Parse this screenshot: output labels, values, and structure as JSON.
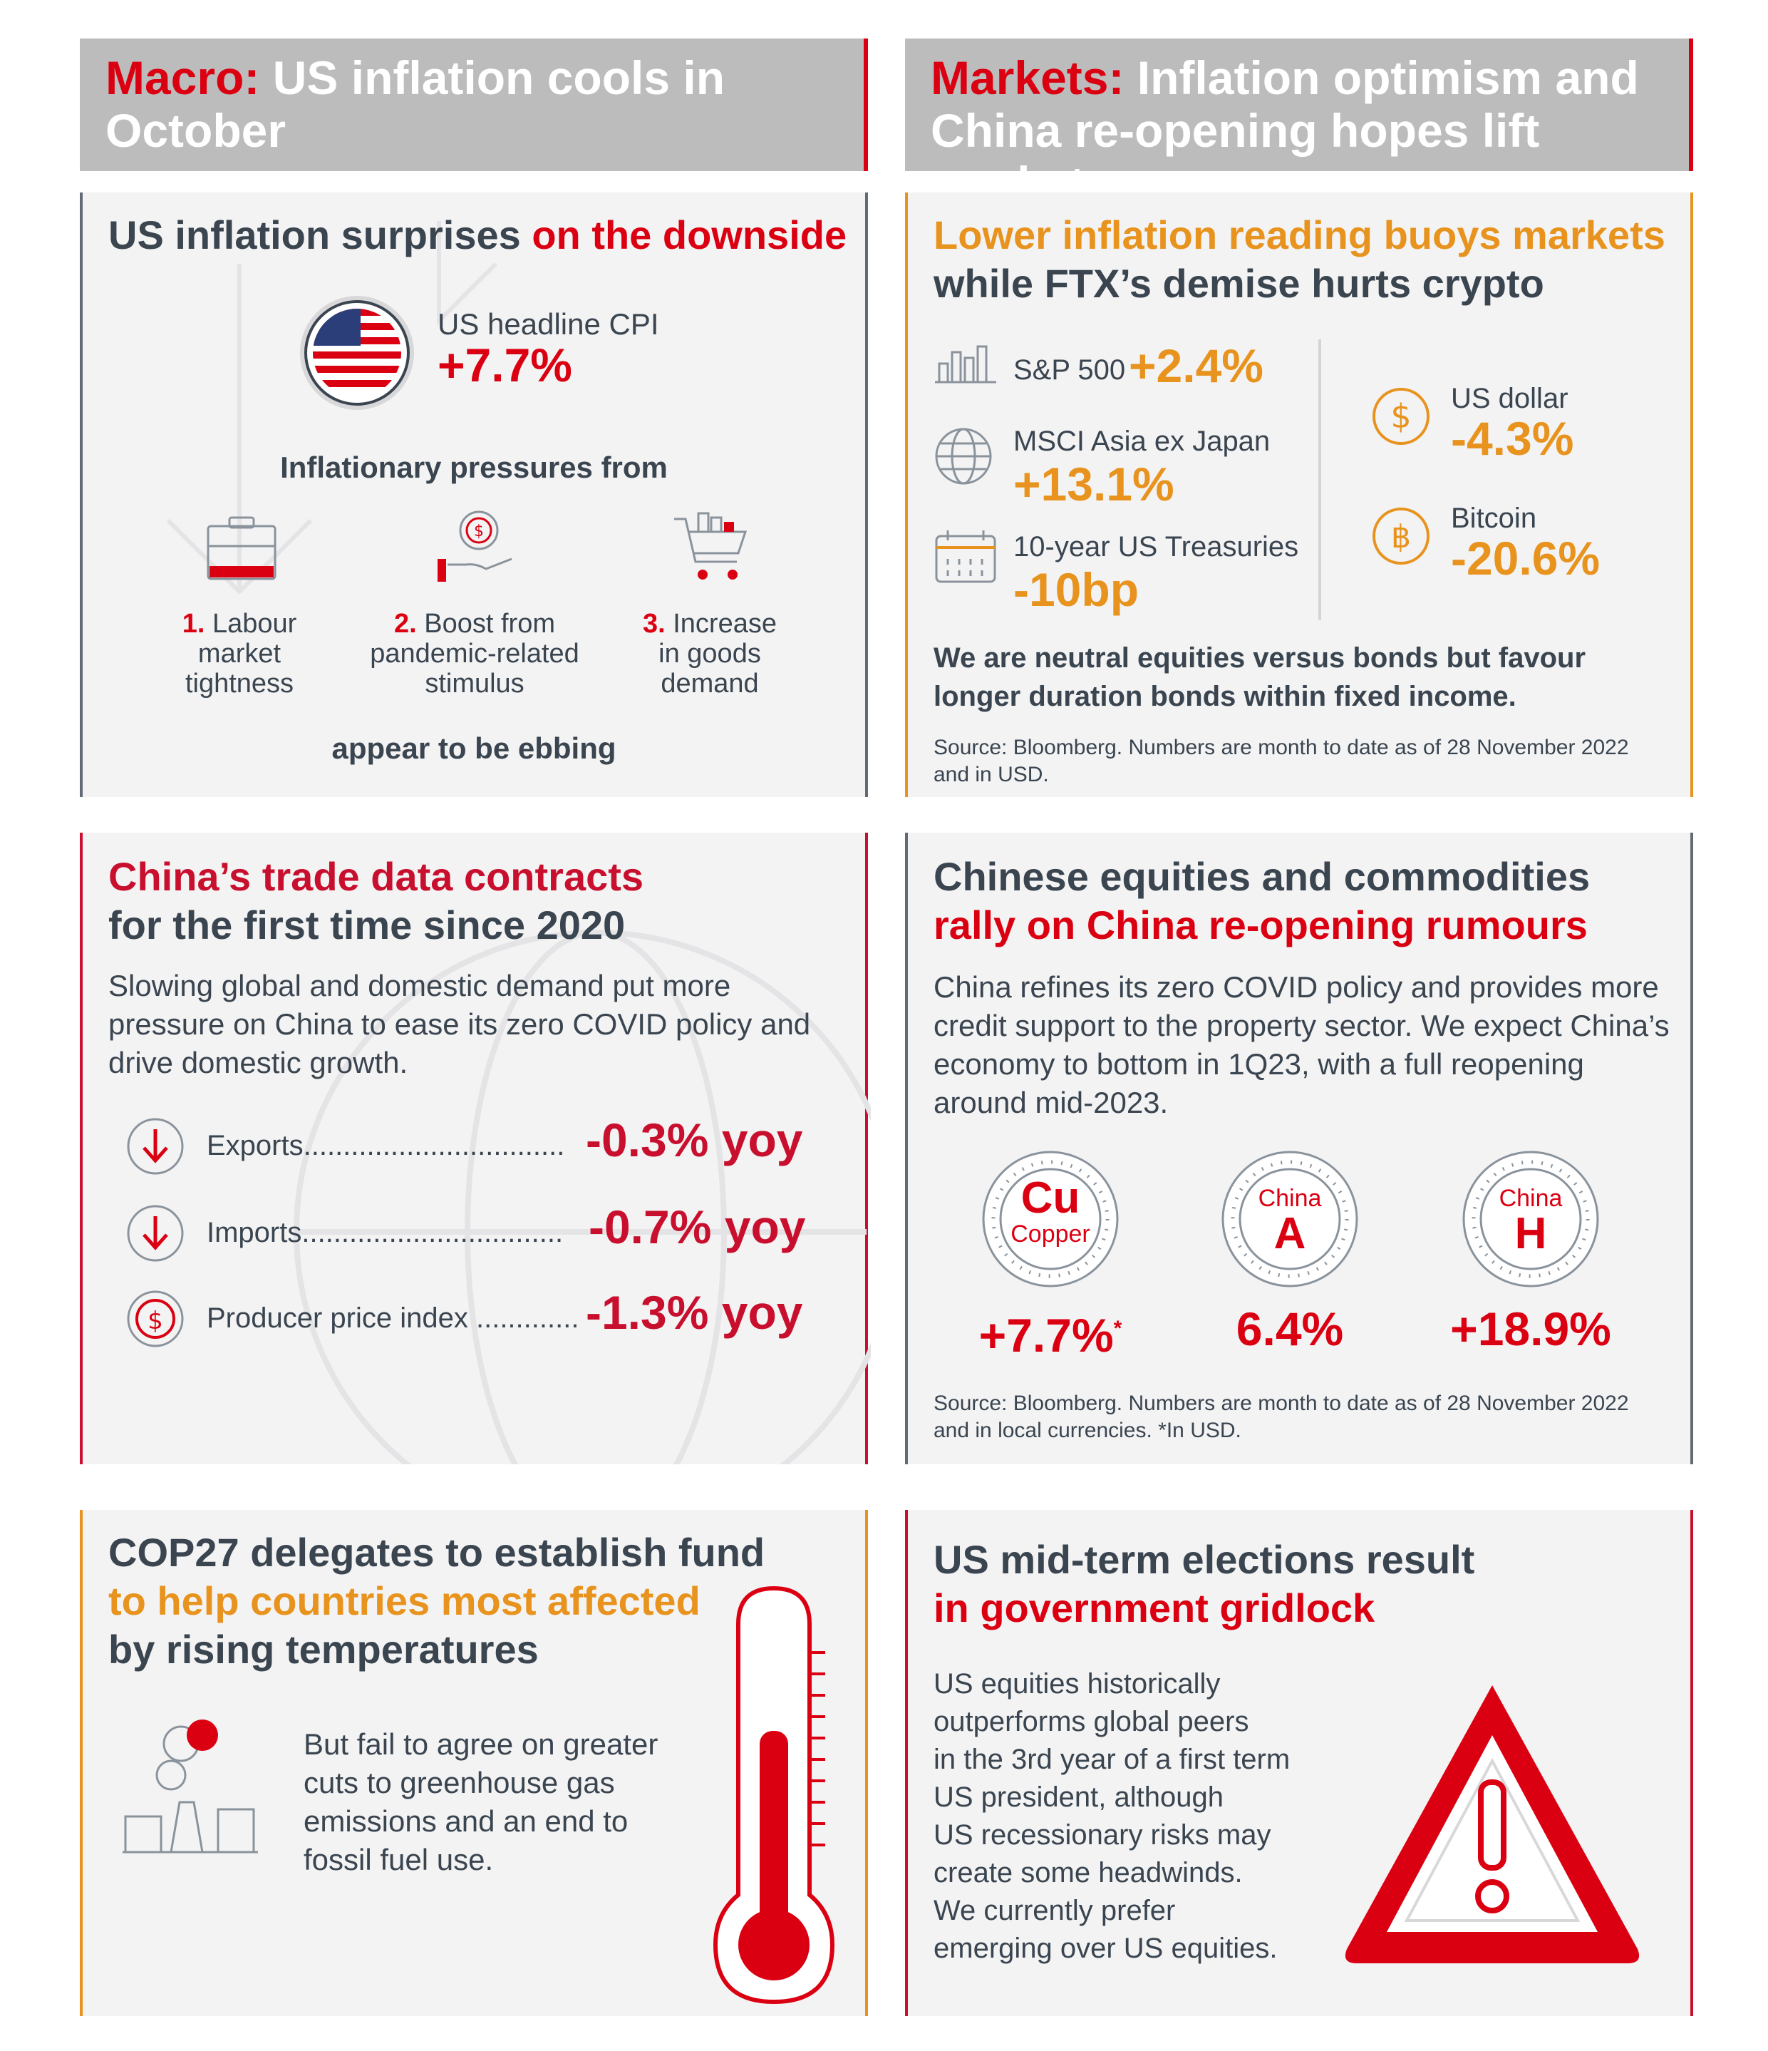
{
  "macro_banner": {
    "lead": "Macro:",
    "rest": " US inflation cools in October"
  },
  "markets_banner": {
    "lead": "Markets:",
    "rest1": " Inflation optimism and",
    "rest2": "China re-opening hopes lift markets"
  },
  "inflation_panel": {
    "title_a": "US inflation surprises ",
    "title_b": "on the downside",
    "cpi_label": "US headline CPI",
    "cpi_value": "+7.7%",
    "pressures_heading": "Inflationary pressures from",
    "pressures": [
      {
        "num": "1.",
        "line1": " Labour",
        "line2": "market",
        "line3": "tightness"
      },
      {
        "num": "2.",
        "line1": " Boost from",
        "line2": "pandemic-related",
        "line3": "stimulus"
      },
      {
        "num": "3.",
        "line1": " Increase",
        "line2": "in goods",
        "line3": "demand"
      }
    ],
    "footer": "appear to be ebbing"
  },
  "markets_panel": {
    "title_line1": "Lower inflation reading buoys markets",
    "title_line2": "while FTX’s demise hurts crypto",
    "items_left": [
      {
        "label": "S&P 500",
        "value": "+2.4%"
      },
      {
        "label": "MSCI Asia ex Japan",
        "value": "+13.1%"
      },
      {
        "label": "10-year US Treasuries",
        "value": "-10bp"
      }
    ],
    "items_right": [
      {
        "label": "US dollar",
        "value": "-4.3%"
      },
      {
        "label": "Bitcoin",
        "value": "-20.6%"
      }
    ],
    "view_line1": "We are neutral equities versus bonds but favour",
    "view_line2": "longer duration bonds within fixed income.",
    "source_line1": "Source: Bloomberg. Numbers are month to date as of 28 November 2022",
    "source_line2": "and in USD."
  },
  "china_trade_panel": {
    "title_line1": "China’s trade data contracts",
    "title_line2": "for the first time since 2020",
    "body_line1": "Slowing global and domestic demand put more",
    "body_line2": "pressure on China to ease its zero COVID policy and",
    "body_line3": "drive domestic growth.",
    "rows": [
      {
        "label": "Exports",
        "dots": ".................................",
        "value": "-0.3%",
        "unit": "yoy"
      },
      {
        "label": "Imports",
        "dots": ".................................",
        "value": "-0.7%",
        "unit": "yoy"
      },
      {
        "label": "Producer price index",
        "dots": " .............",
        "value": "-1.3%",
        "unit": "yoy"
      }
    ]
  },
  "china_equities_panel": {
    "title_line1": "Chinese equities and commodities",
    "title_line2": "rally on China re-opening rumours",
    "body_line1": "China refines its zero COVID policy and provides more",
    "body_line2": "credit support to the property sector. We expect China’s",
    "body_line3": "economy to bottom in 1Q23, with a full reopening",
    "body_line4": "around mid-2023.",
    "badges": [
      {
        "big": "Cu",
        "small": "Copper",
        "value": "+7.7%",
        "note": "*"
      },
      {
        "big": "A",
        "small": "China",
        "value": "6.4%",
        "note": ""
      },
      {
        "big": "H",
        "small": "China",
        "value": "+18.9%",
        "note": ""
      }
    ],
    "source_line1": "Source: Bloomberg. Numbers are month to date as of 28 November 2022",
    "source_line2": "and in local currencies. *In USD."
  },
  "cop27_panel": {
    "title_line1": "COP27 delegates to establish fund",
    "title_line2": "to help countries most affected",
    "title_line3": "by rising temperatures",
    "body_line1": "But fail to agree on greater",
    "body_line2": "cuts to greenhouse gas",
    "body_line3": "emissions and an end to",
    "body_line4": "fossil fuel use."
  },
  "elections_panel": {
    "title_line1": "US mid-term elections result",
    "title_line2": "in government gridlock",
    "body_lines": [
      "US equities historically",
      "outperforms global peers",
      "in the 3rd year of a first term",
      "US president, although",
      "US recessionary risks may",
      "create some headwinds.",
      "We currently prefer",
      "emerging over US equities."
    ]
  },
  "colors": {
    "red": "#db0011",
    "dark_red": "#c8102e",
    "orange": "#e8931e",
    "slate": "#3a4550",
    "panel_bg": "#f3f3f4",
    "banner_bg": "#bcbcbc"
  }
}
